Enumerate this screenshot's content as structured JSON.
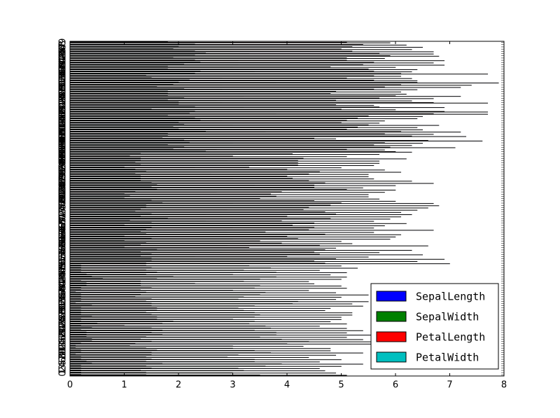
{
  "chart_data": {
    "type": "barh",
    "legend": "lower right",
    "xlim": [
      0,
      8
    ],
    "xticks": [
      0,
      1,
      2,
      3,
      4,
      5,
      6,
      7,
      8
    ],
    "ylim": [
      -0.5,
      149.5
    ],
    "categories": [
      0,
      1,
      2,
      3,
      4,
      5,
      6,
      7,
      8,
      9,
      10,
      11,
      12,
      13,
      14,
      15,
      16,
      17,
      18,
      19,
      20,
      21,
      22,
      23,
      24,
      25,
      26,
      27,
      28,
      29,
      30,
      31,
      32,
      33,
      34,
      35,
      36,
      37,
      38,
      39,
      40,
      41,
      42,
      43,
      44,
      45,
      46,
      47,
      48,
      49,
      50,
      51,
      52,
      53,
      54,
      55,
      56,
      57,
      58,
      59,
      60,
      61,
      62,
      63,
      64,
      65,
      66,
      67,
      68,
      69,
      70,
      71,
      72,
      73,
      74,
      75,
      76,
      77,
      78,
      79,
      80,
      81,
      82,
      83,
      84,
      85,
      86,
      87,
      88,
      89,
      90,
      91,
      92,
      93,
      94,
      95,
      96,
      97,
      98,
      99,
      100,
      101,
      102,
      103,
      104,
      105,
      106,
      107,
      108,
      109,
      110,
      111,
      112,
      113,
      114,
      115,
      116,
      117,
      118,
      119,
      120,
      121,
      122,
      123,
      124,
      125,
      126,
      127,
      128,
      129,
      130,
      131,
      132,
      133,
      134,
      135,
      136,
      137,
      138,
      139,
      140,
      141,
      142,
      143,
      144,
      145,
      146,
      147,
      148,
      149
    ],
    "series": [
      {
        "name": "SepalLength",
        "color": "#0000ff",
        "values": [
          5.1,
          4.9,
          4.7,
          4.6,
          5.0,
          5.4,
          4.6,
          5.0,
          4.4,
          4.9,
          5.4,
          4.8,
          4.8,
          4.3,
          5.8,
          5.7,
          5.4,
          5.1,
          5.7,
          5.1,
          5.4,
          5.1,
          4.6,
          5.1,
          4.8,
          5.0,
          5.0,
          5.2,
          5.2,
          4.7,
          4.8,
          5.4,
          5.2,
          5.5,
          4.9,
          5.0,
          5.5,
          4.9,
          4.4,
          5.1,
          5.0,
          4.5,
          4.4,
          5.0,
          5.1,
          4.8,
          5.1,
          4.6,
          5.3,
          5.0,
          7.0,
          6.4,
          6.9,
          5.5,
          6.5,
          5.7,
          6.3,
          4.9,
          6.6,
          5.2,
          5.0,
          5.9,
          6.0,
          6.1,
          5.6,
          6.7,
          5.6,
          5.8,
          6.2,
          5.6,
          5.9,
          6.1,
          6.3,
          6.1,
          6.4,
          6.6,
          6.8,
          6.7,
          6.0,
          5.7,
          5.5,
          5.5,
          5.8,
          6.0,
          5.4,
          6.0,
          6.7,
          6.3,
          5.6,
          5.5,
          5.5,
          6.1,
          5.8,
          5.0,
          5.6,
          5.7,
          5.7,
          6.2,
          5.1,
          5.7,
          6.3,
          5.8,
          7.1,
          6.3,
          6.5,
          7.6,
          4.9,
          7.3,
          6.7,
          7.2,
          6.5,
          6.4,
          6.8,
          5.7,
          5.8,
          6.4,
          6.5,
          7.7,
          7.7,
          6.0,
          6.9,
          5.6,
          7.7,
          6.3,
          6.7,
          7.2,
          6.2,
          6.1,
          6.4,
          7.2,
          7.4,
          7.9,
          6.4,
          6.3,
          6.1,
          7.7,
          6.3,
          6.4,
          6.0,
          6.9,
          6.7,
          6.9,
          5.8,
          6.8,
          6.7,
          6.7,
          6.3,
          6.5,
          6.2,
          5.9
        ]
      },
      {
        "name": "SepalWidth",
        "color": "#008000",
        "values": [
          3.5,
          3.0,
          3.2,
          3.1,
          3.6,
          3.9,
          3.4,
          3.4,
          2.9,
          3.1,
          3.7,
          3.4,
          3.0,
          3.0,
          4.0,
          4.4,
          3.9,
          3.5,
          3.8,
          3.8,
          3.4,
          3.7,
          3.6,
          3.3,
          3.4,
          3.0,
          3.4,
          3.5,
          3.4,
          3.2,
          3.1,
          3.4,
          4.1,
          4.2,
          3.1,
          3.2,
          3.5,
          3.6,
          3.0,
          3.4,
          3.5,
          2.3,
          3.2,
          3.5,
          3.8,
          3.0,
          3.8,
          3.2,
          3.7,
          3.3,
          3.2,
          3.2,
          3.1,
          2.3,
          2.8,
          2.8,
          3.3,
          2.4,
          2.9,
          2.7,
          2.0,
          3.0,
          2.2,
          2.9,
          2.9,
          3.1,
          3.0,
          2.7,
          2.2,
          2.5,
          3.2,
          2.8,
          2.5,
          2.8,
          2.9,
          3.0,
          2.8,
          3.0,
          2.9,
          2.6,
          2.4,
          2.4,
          2.7,
          2.7,
          3.0,
          3.4,
          3.1,
          2.3,
          3.0,
          2.5,
          2.6,
          3.0,
          2.6,
          2.3,
          2.7,
          3.0,
          2.9,
          2.9,
          2.5,
          2.8,
          3.3,
          2.7,
          3.0,
          2.9,
          3.0,
          3.0,
          2.5,
          2.9,
          2.5,
          3.6,
          3.2,
          2.7,
          3.0,
          2.5,
          2.8,
          3.2,
          3.0,
          3.8,
          2.6,
          2.2,
          3.2,
          2.8,
          2.8,
          2.7,
          3.3,
          3.2,
          2.8,
          3.0,
          2.8,
          3.0,
          2.8,
          3.8,
          2.8,
          2.8,
          2.6,
          3.0,
          3.4,
          3.1,
          3.0,
          3.1,
          3.1,
          3.1,
          2.7,
          3.2,
          3.3,
          3.0,
          2.5,
          3.0,
          3.4,
          3.0
        ]
      },
      {
        "name": "PetalLength",
        "color": "#ff0000",
        "values": [
          1.4,
          1.4,
          1.3,
          1.5,
          1.4,
          1.7,
          1.4,
          1.5,
          1.4,
          1.5,
          1.5,
          1.6,
          1.4,
          1.1,
          1.2,
          1.5,
          1.3,
          1.4,
          1.7,
          1.5,
          1.7,
          1.5,
          1.0,
          1.7,
          1.9,
          1.6,
          1.6,
          1.5,
          1.4,
          1.6,
          1.6,
          1.5,
          1.5,
          1.4,
          1.5,
          1.2,
          1.3,
          1.4,
          1.3,
          1.5,
          1.3,
          1.3,
          1.3,
          1.6,
          1.9,
          1.4,
          1.6,
          1.4,
          1.5,
          1.4,
          4.7,
          4.5,
          4.9,
          4.0,
          4.6,
          4.5,
          4.7,
          3.3,
          4.6,
          3.9,
          3.5,
          4.2,
          4.0,
          4.7,
          3.6,
          4.4,
          4.5,
          4.1,
          4.5,
          3.9,
          4.8,
          4.0,
          4.9,
          4.7,
          4.3,
          4.4,
          4.8,
          5.0,
          4.5,
          3.5,
          3.8,
          3.7,
          3.9,
          5.1,
          4.5,
          4.5,
          4.7,
          4.4,
          4.1,
          4.0,
          4.4,
          4.6,
          4.0,
          3.3,
          4.2,
          4.2,
          4.2,
          4.3,
          3.0,
          4.1,
          6.0,
          5.1,
          5.9,
          5.6,
          5.8,
          6.6,
          4.5,
          6.3,
          5.8,
          6.1,
          5.1,
          5.3,
          5.5,
          5.0,
          5.1,
          5.3,
          5.5,
          6.7,
          6.9,
          5.0,
          5.7,
          4.9,
          6.7,
          4.9,
          5.7,
          6.0,
          4.8,
          4.9,
          5.6,
          5.8,
          6.1,
          6.4,
          5.6,
          5.1,
          5.6,
          6.1,
          5.6,
          5.5,
          4.8,
          5.4,
          5.6,
          5.1,
          5.1,
          5.9,
          5.7,
          5.2,
          5.0,
          5.2,
          5.4,
          5.1
        ]
      },
      {
        "name": "PetalWidth",
        "color": "#00bfbf",
        "values": [
          0.2,
          0.2,
          0.2,
          0.2,
          0.2,
          0.4,
          0.3,
          0.2,
          0.2,
          0.1,
          0.2,
          0.2,
          0.1,
          0.1,
          0.2,
          0.4,
          0.4,
          0.3,
          0.3,
          0.3,
          0.2,
          0.4,
          0.2,
          0.5,
          0.2,
          0.2,
          0.4,
          0.2,
          0.2,
          0.2,
          0.2,
          0.4,
          0.1,
          0.2,
          0.2,
          0.2,
          0.2,
          0.1,
          0.2,
          0.2,
          0.3,
          0.3,
          0.2,
          0.6,
          0.4,
          0.3,
          0.2,
          0.2,
          0.2,
          0.2,
          1.4,
          1.5,
          1.5,
          1.3,
          1.5,
          1.3,
          1.6,
          1.0,
          1.3,
          1.4,
          1.0,
          1.5,
          1.0,
          1.4,
          1.3,
          1.4,
          1.5,
          1.0,
          1.5,
          1.1,
          1.8,
          1.3,
          1.5,
          1.2,
          1.3,
          1.4,
          1.4,
          1.7,
          1.5,
          1.0,
          1.1,
          1.0,
          1.2,
          1.6,
          1.5,
          1.6,
          1.5,
          1.3,
          1.3,
          1.3,
          1.2,
          1.4,
          1.2,
          1.0,
          1.3,
          1.2,
          1.3,
          1.3,
          1.1,
          1.3,
          2.5,
          1.9,
          2.1,
          1.8,
          2.2,
          2.1,
          1.7,
          1.8,
          1.8,
          2.5,
          2.0,
          1.9,
          2.1,
          2.0,
          2.4,
          2.3,
          1.8,
          2.2,
          2.3,
          1.5,
          2.3,
          2.0,
          2.0,
          1.8,
          2.1,
          1.8,
          1.8,
          1.8,
          2.1,
          1.6,
          1.9,
          2.0,
          2.2,
          1.5,
          1.4,
          2.3,
          2.4,
          1.8,
          1.8,
          2.1,
          2.4,
          2.3,
          1.9,
          2.3,
          2.5,
          2.3,
          1.9,
          2.0,
          2.3,
          1.8
        ]
      }
    ]
  }
}
